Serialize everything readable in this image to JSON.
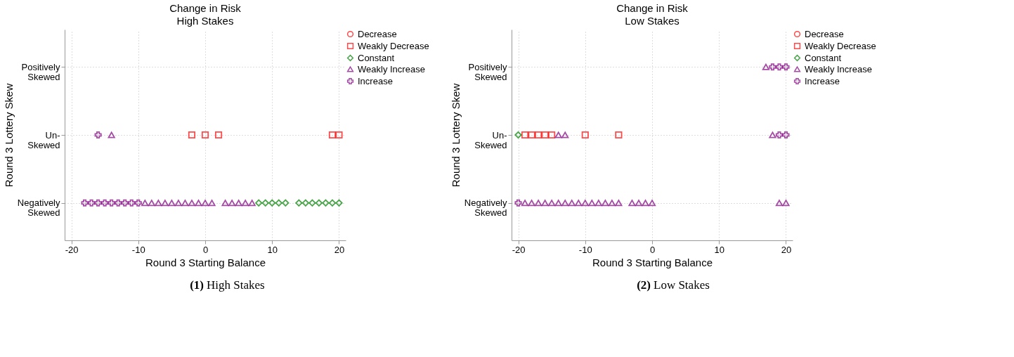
{
  "chart_data": [
    {
      "type": "scatter",
      "orientation": "horizontal",
      "title": "Change in Risk",
      "subtitle": "High Stakes",
      "xlabel": "Round 3 Starting Balance",
      "ylabel": "Round 3 Lottery Skew",
      "xlim": [
        -21,
        21
      ],
      "xticks": [
        -20,
        -10,
        0,
        10,
        20
      ],
      "categories": [
        "Positively\nSkewed",
        "Un-\nSkewed",
        "Negatively\nSkewed"
      ],
      "grid": true,
      "legend": "right",
      "annotations": [
        "(1) High Stakes"
      ],
      "series": [
        {
          "name": "Decrease",
          "color": "#ff0000",
          "marker": "circle",
          "values": [
            null,
            null,
            null
          ]
        },
        {
          "name": "Weakly Decrease",
          "color": "#ff0000",
          "marker": "square",
          "x": [
            "Un-\nSkewed",
            "Un-\nSkewed",
            "Un-\nSkewed",
            "Un-\nSkewed",
            "Un-\nSkewed"
          ],
          "values": [
            -2,
            0,
            2,
            19,
            20
          ]
        },
        {
          "name": "Constant",
          "color": "#008000",
          "marker": "diamond",
          "x": [
            "Negatively\nSkewed",
            "Negatively\nSkewed",
            "Negatively\nSkewed",
            "Negatively\nSkewed",
            "Negatively\nSkewed",
            "Negatively\nSkewed",
            "Negatively\nSkewed",
            "Negatively\nSkewed",
            "Negatively\nSkewed",
            "Negatively\nSkewed",
            "Negatively\nSkewed",
            "Negatively\nSkewed"
          ],
          "values": [
            8,
            9,
            10,
            11,
            12,
            14,
            15,
            16,
            17,
            18,
            19,
            20
          ]
        },
        {
          "name": "Weakly Increase",
          "color": "#800080",
          "marker": "triangle",
          "x": [
            "Un-\nSkewed",
            "Negatively\nSkewed",
            "Negatively\nSkewed",
            "Negatively\nSkewed",
            "Negatively\nSkewed",
            "Negatively\nSkewed",
            "Negatively\nSkewed",
            "Negatively\nSkewed",
            "Negatively\nSkewed",
            "Negatively\nSkewed",
            "Negatively\nSkewed",
            "Negatively\nSkewed",
            "Negatively\nSkewed",
            "Negatively\nSkewed",
            "Negatively\nSkewed",
            "Negatively\nSkewed",
            "Negatively\nSkewed"
          ],
          "values": [
            -14,
            -9,
            -8,
            -7,
            -6,
            -5,
            -4,
            -3,
            -2,
            -1,
            0,
            1,
            3,
            4,
            5,
            6,
            7
          ]
        },
        {
          "name": "Increase",
          "color": "#800080",
          "marker": "cross",
          "x": [
            "Un-\nSkewed",
            "Negatively\nSkewed",
            "Negatively\nSkewed",
            "Negatively\nSkewed",
            "Negatively\nSkewed",
            "Negatively\nSkewed",
            "Negatively\nSkewed",
            "Negatively\nSkewed",
            "Negatively\nSkewed",
            "Negatively\nSkewed"
          ],
          "values": [
            -16,
            -18,
            -17,
            -16,
            -15,
            -14,
            -13,
            -12,
            -11,
            -10
          ]
        }
      ]
    },
    {
      "type": "scatter",
      "orientation": "horizontal",
      "title": "Change in Risk",
      "subtitle": "Low Stakes",
      "xlabel": "Round 3 Starting Balance",
      "ylabel": "Round 3 Lottery Skew",
      "xlim": [
        -21,
        21
      ],
      "xticks": [
        -20,
        -10,
        0,
        10,
        20
      ],
      "categories": [
        "Positively\nSkewed",
        "Un-\nSkewed",
        "Negatively\nSkewed"
      ],
      "grid": true,
      "legend": "right",
      "annotations": [
        "(2) Low Stakes"
      ],
      "series": [
        {
          "name": "Decrease",
          "color": "#ff0000",
          "marker": "circle",
          "values": [
            null,
            null,
            null
          ]
        },
        {
          "name": "Weakly Decrease",
          "color": "#ff0000",
          "marker": "square",
          "x": [
            "Un-\nSkewed",
            "Un-\nSkewed",
            "Un-\nSkewed",
            "Un-\nSkewed",
            "Un-\nSkewed",
            "Un-\nSkewed",
            "Un-\nSkewed"
          ],
          "values": [
            -19,
            -18,
            -17,
            -16,
            -15,
            -10,
            -5
          ]
        },
        {
          "name": "Constant",
          "color": "#008000",
          "marker": "diamond",
          "x": [
            "Un-\nSkewed"
          ],
          "values": [
            -20
          ]
        },
        {
          "name": "Weakly Increase",
          "color": "#800080",
          "marker": "triangle",
          "x": [
            "Positively\nSkewed",
            "Un-\nSkewed",
            "Un-\nSkewed",
            "Un-\nSkewed",
            "Negatively\nSkewed",
            "Negatively\nSkewed",
            "Negatively\nSkewed",
            "Negatively\nSkewed",
            "Negatively\nSkewed",
            "Negatively\nSkewed",
            "Negatively\nSkewed",
            "Negatively\nSkewed",
            "Negatively\nSkewed",
            "Negatively\nSkewed",
            "Negatively\nSkewed",
            "Negatively\nSkewed",
            "Negatively\nSkewed",
            "Negatively\nSkewed",
            "Negatively\nSkewed",
            "Negatively\nSkewed",
            "Negatively\nSkewed",
            "Negatively\nSkewed",
            "Negatively\nSkewed",
            "Negatively\nSkewed",
            "Negatively\nSkewed"
          ],
          "values": [
            17,
            -14,
            -13,
            18,
            -19,
            -18,
            -17,
            -16,
            -15,
            -14,
            -13,
            -12,
            -11,
            -10,
            -9,
            -8,
            -7,
            -6,
            -5,
            -3,
            -2,
            -1,
            0,
            19,
            20
          ]
        },
        {
          "name": "Increase",
          "color": "#800080",
          "marker": "cross",
          "x": [
            "Positively\nSkewed",
            "Positively\nSkewed",
            "Positively\nSkewed",
            "Un-\nSkewed",
            "Un-\nSkewed",
            "Negatively\nSkewed"
          ],
          "values": [
            18,
            19,
            20,
            19,
            20,
            -20
          ]
        }
      ]
    }
  ]
}
